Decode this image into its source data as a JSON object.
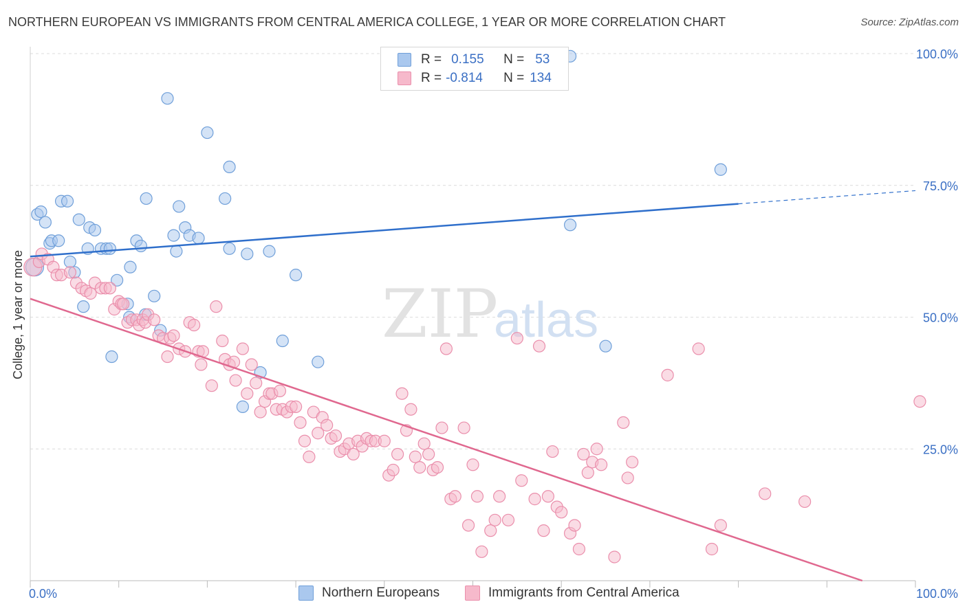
{
  "header": {
    "title": "NORTHERN EUROPEAN VS IMMIGRANTS FROM CENTRAL AMERICA COLLEGE, 1 YEAR OR MORE CORRELATION CHART",
    "source": "Source: ZipAtlas.com"
  },
  "watermark": {
    "zip": "ZIP",
    "atlas": "atlas"
  },
  "stats_legend": {
    "rows": [
      {
        "r_label": "R =",
        "r_value": "0.155",
        "n_label": "N =",
        "n_value": "53"
      },
      {
        "r_label": "R =",
        "r_value": "-0.814",
        "n_label": "N =",
        "n_value": "134"
      }
    ]
  },
  "colors": {
    "blue_fill": "#aac8ee",
    "blue_stroke": "#6f9fd9",
    "blue_line": "#2f6fcb",
    "pink_fill": "#f6b9cb",
    "pink_stroke": "#ea8eab",
    "pink_line": "#e0688f",
    "axis_text": "#3a6fc4",
    "grid": "#dcdcdc"
  },
  "chart_data": {
    "type": "scatter",
    "title": "NORTHERN EUROPEAN VS IMMIGRANTS FROM CENTRAL AMERICA COLLEGE, 1 YEAR OR MORE CORRELATION CHART",
    "xlabel": "",
    "ylabel": "College, 1 year or more",
    "xlim": [
      0,
      100
    ],
    "ylim": [
      0,
      100
    ],
    "x_tick_labels": [
      "0.0%",
      "100.0%"
    ],
    "y_tick_labels": [
      "25.0%",
      "50.0%",
      "75.0%",
      "100.0%"
    ],
    "y_ticks": [
      25,
      50,
      75,
      100
    ],
    "grid": true,
    "legend_position": "bottom",
    "series": [
      {
        "name": "Northern Europeans",
        "r": 0.155,
        "n": 53,
        "trend": {
          "x0": 0,
          "y0": 61.5,
          "x1": 80,
          "y1": 71.5,
          "dashed_to_x": 100,
          "dashed_to_y": 74.0
        },
        "points": [
          [
            0.5,
            59.5
          ],
          [
            0.8,
            69.5
          ],
          [
            1.2,
            70
          ],
          [
            1.7,
            68
          ],
          [
            2.2,
            64
          ],
          [
            2.4,
            64.5
          ],
          [
            3.2,
            64.5
          ],
          [
            3.5,
            72
          ],
          [
            4.2,
            72
          ],
          [
            5.5,
            68.5
          ],
          [
            4.5,
            60.5
          ],
          [
            5,
            58.5
          ],
          [
            6,
            52
          ],
          [
            6.5,
            63
          ],
          [
            6.7,
            67
          ],
          [
            7.3,
            66.5
          ],
          [
            8,
            63
          ],
          [
            8.6,
            63
          ],
          [
            9,
            63
          ],
          [
            9.2,
            42.5
          ],
          [
            9.8,
            57
          ],
          [
            11,
            52.5
          ],
          [
            11.2,
            50
          ],
          [
            11.3,
            59.5
          ],
          [
            12,
            64.5
          ],
          [
            12.5,
            63.5
          ],
          [
            13,
            50.5
          ],
          [
            13.1,
            72.5
          ],
          [
            14,
            54
          ],
          [
            14.7,
            47.5
          ],
          [
            15.5,
            91.5
          ],
          [
            16.2,
            65.5
          ],
          [
            16.5,
            62.5
          ],
          [
            16.8,
            71
          ],
          [
            17.5,
            67
          ],
          [
            18,
            65.5
          ],
          [
            19,
            65
          ],
          [
            20,
            85
          ],
          [
            22.5,
            78.5
          ],
          [
            22,
            72.5
          ],
          [
            22.5,
            63
          ],
          [
            24.5,
            62
          ],
          [
            24,
            33
          ],
          [
            26,
            39.5
          ],
          [
            27,
            62.5
          ],
          [
            28.5,
            45.5
          ],
          [
            30,
            58
          ],
          [
            32.5,
            41.5
          ],
          [
            40.5,
            99.5
          ],
          [
            61,
            67.5
          ],
          [
            61,
            99.5
          ],
          [
            65,
            44.5
          ],
          [
            78,
            78
          ]
        ]
      },
      {
        "name": "Immigrants from Central America",
        "r": -0.814,
        "n": 134,
        "trend": {
          "x0": 0,
          "y0": 53.5,
          "x1": 94,
          "y1": 0
        },
        "points": [
          [
            0.3,
            59.5
          ],
          [
            1,
            60.5
          ],
          [
            1.3,
            62
          ],
          [
            2,
            61
          ],
          [
            2.6,
            59.5
          ],
          [
            3,
            58
          ],
          [
            3.5,
            58
          ],
          [
            4.5,
            58.5
          ],
          [
            5.2,
            56.5
          ],
          [
            5.8,
            55.5
          ],
          [
            6.3,
            55
          ],
          [
            6.8,
            54.5
          ],
          [
            7.3,
            56.5
          ],
          [
            8,
            55.5
          ],
          [
            8.5,
            55.5
          ],
          [
            9,
            55.5
          ],
          [
            9.5,
            51.5
          ],
          [
            10,
            53
          ],
          [
            10.3,
            52.5
          ],
          [
            10.5,
            52.5
          ],
          [
            11,
            49
          ],
          [
            11.5,
            49.5
          ],
          [
            12,
            49.5
          ],
          [
            12.3,
            48.5
          ],
          [
            12.7,
            49.5
          ],
          [
            13,
            49
          ],
          [
            13.3,
            50.5
          ],
          [
            14,
            49.5
          ],
          [
            14.5,
            46.5
          ],
          [
            15,
            46
          ],
          [
            15.5,
            42.5
          ],
          [
            15.8,
            46
          ],
          [
            16.2,
            46.5
          ],
          [
            16.8,
            44
          ],
          [
            17.5,
            43.5
          ],
          [
            18,
            49
          ],
          [
            18.5,
            48.5
          ],
          [
            19,
            43.5
          ],
          [
            19.3,
            41
          ],
          [
            19.5,
            43.5
          ],
          [
            20.5,
            37
          ],
          [
            21,
            52
          ],
          [
            21.7,
            45.5
          ],
          [
            22,
            42
          ],
          [
            22.5,
            41
          ],
          [
            23,
            41.5
          ],
          [
            23.2,
            38
          ],
          [
            24,
            44
          ],
          [
            24.5,
            35.5
          ],
          [
            25,
            41
          ],
          [
            25.5,
            37.5
          ],
          [
            26,
            32
          ],
          [
            26.5,
            34
          ],
          [
            27,
            35.5
          ],
          [
            27.3,
            35.5
          ],
          [
            27.8,
            32.5
          ],
          [
            28.2,
            36
          ],
          [
            28.5,
            32.5
          ],
          [
            29,
            32
          ],
          [
            29.5,
            33
          ],
          [
            30,
            33
          ],
          [
            30.5,
            30
          ],
          [
            31,
            26.5
          ],
          [
            31.5,
            23.5
          ],
          [
            32,
            32
          ],
          [
            32.5,
            28
          ],
          [
            33,
            31
          ],
          [
            33.5,
            29.5
          ],
          [
            34,
            27
          ],
          [
            34.5,
            27.5
          ],
          [
            35,
            24.5
          ],
          [
            35.5,
            25
          ],
          [
            36,
            26
          ],
          [
            36.5,
            24
          ],
          [
            37,
            26.5
          ],
          [
            37.5,
            25.5
          ],
          [
            38,
            27
          ],
          [
            38.5,
            26.5
          ],
          [
            39,
            26.5
          ],
          [
            40,
            26.5
          ],
          [
            40.5,
            20
          ],
          [
            41,
            21
          ],
          [
            41.5,
            24
          ],
          [
            42,
            35.5
          ],
          [
            42.5,
            28.5
          ],
          [
            43,
            32.5
          ],
          [
            43.5,
            23.5
          ],
          [
            44,
            21.5
          ],
          [
            44.5,
            26
          ],
          [
            45,
            24
          ],
          [
            45.5,
            21
          ],
          [
            46,
            21.5
          ],
          [
            46.5,
            29
          ],
          [
            47,
            44
          ],
          [
            47.5,
            15.5
          ],
          [
            48,
            16
          ],
          [
            49,
            29
          ],
          [
            49.5,
            10.5
          ],
          [
            50,
            22
          ],
          [
            50.5,
            16
          ],
          [
            51,
            5.5
          ],
          [
            52,
            9.5
          ],
          [
            52.5,
            11.5
          ],
          [
            53,
            16
          ],
          [
            54,
            11.5
          ],
          [
            55,
            46
          ],
          [
            55.5,
            19
          ],
          [
            57,
            15.5
          ],
          [
            57.5,
            44.5
          ],
          [
            58,
            9.5
          ],
          [
            58.5,
            16
          ],
          [
            59,
            24.5
          ],
          [
            59.5,
            14
          ],
          [
            60,
            13
          ],
          [
            61,
            9
          ],
          [
            61.5,
            10.5
          ],
          [
            62,
            6
          ],
          [
            62.5,
            24
          ],
          [
            63,
            20.5
          ],
          [
            63.5,
            22.5
          ],
          [
            64,
            25
          ],
          [
            64.5,
            22
          ],
          [
            66,
            4.5
          ],
          [
            67,
            30
          ],
          [
            67.5,
            19.5
          ],
          [
            68,
            22.5
          ],
          [
            72,
            39
          ],
          [
            75.5,
            44
          ],
          [
            77,
            6
          ],
          [
            78,
            10.5
          ],
          [
            83,
            16.5
          ],
          [
            87.5,
            15
          ],
          [
            100.5,
            34
          ]
        ]
      }
    ]
  },
  "bottom_legend": {
    "items": [
      {
        "label": "Northern Europeans"
      },
      {
        "label": "Immigrants from Central America"
      }
    ]
  }
}
